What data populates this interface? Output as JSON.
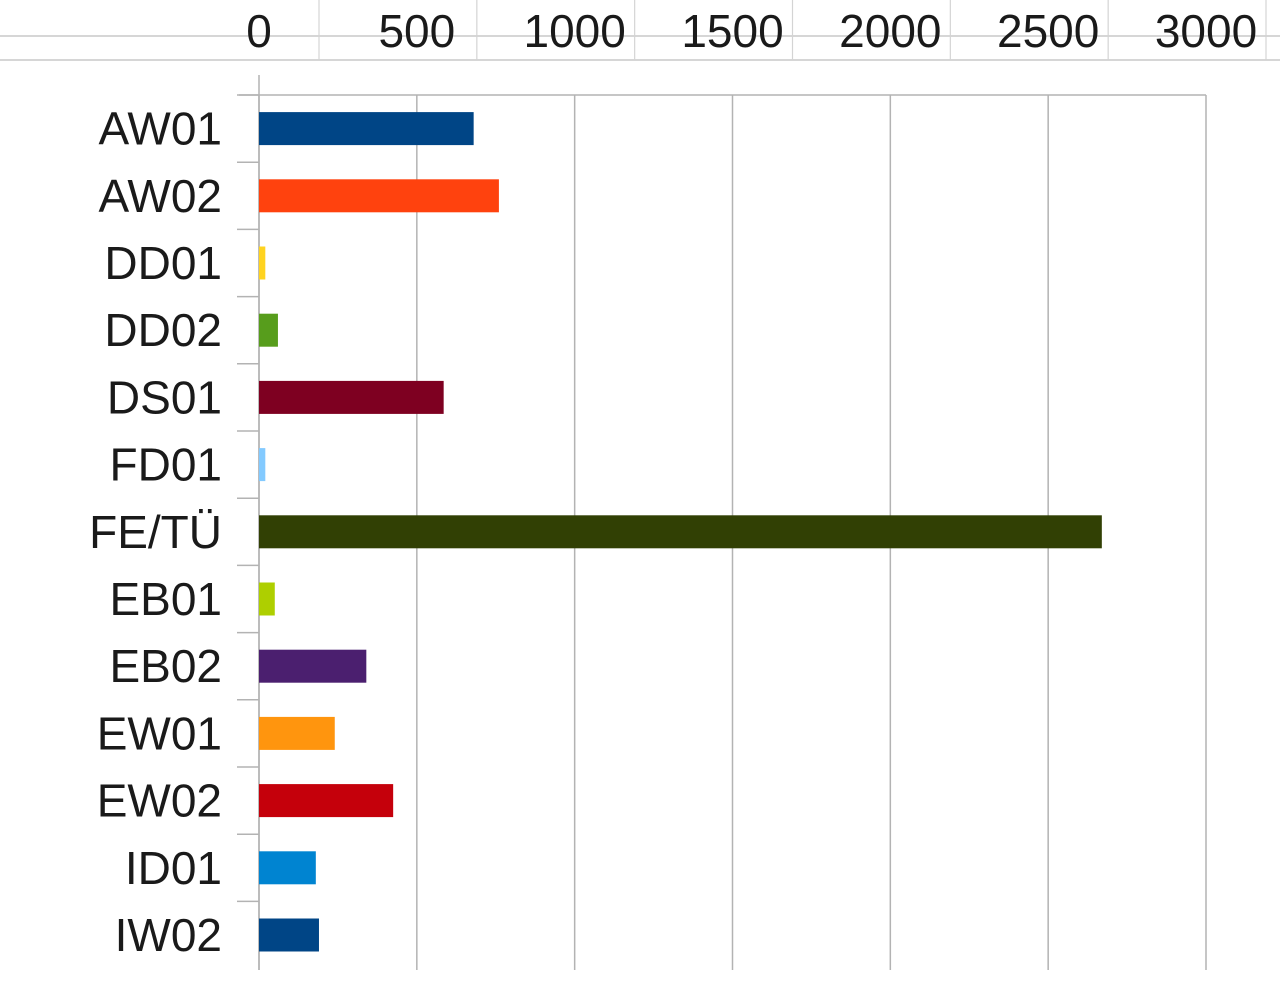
{
  "chart_data": {
    "type": "bar",
    "orientation": "horizontal",
    "categories": [
      "AW01",
      "AW02",
      "DD01",
      "DD02",
      "DS01",
      "FD01",
      "FE/TÜ",
      "EB01",
      "EB02",
      "EW01",
      "EW02",
      "ID01",
      "IW02"
    ],
    "values": [
      680,
      760,
      20,
      60,
      585,
      20,
      2670,
      50,
      340,
      240,
      425,
      180,
      190
    ],
    "colors": [
      "#004586",
      "#ff420e",
      "#ffd320",
      "#579d1c",
      "#7e0021",
      "#83caff",
      "#314004",
      "#aecf00",
      "#4b1f6f",
      "#ff950e",
      "#c5000b",
      "#0084d1",
      "#004586"
    ],
    "xlim": [
      0,
      3000
    ],
    "xticks": [
      "0",
      "500",
      "1000",
      "1500",
      "2000",
      "2500",
      "3000"
    ],
    "grid": true,
    "legend": "none",
    "title": "",
    "xlabel": "",
    "ylabel": ""
  }
}
